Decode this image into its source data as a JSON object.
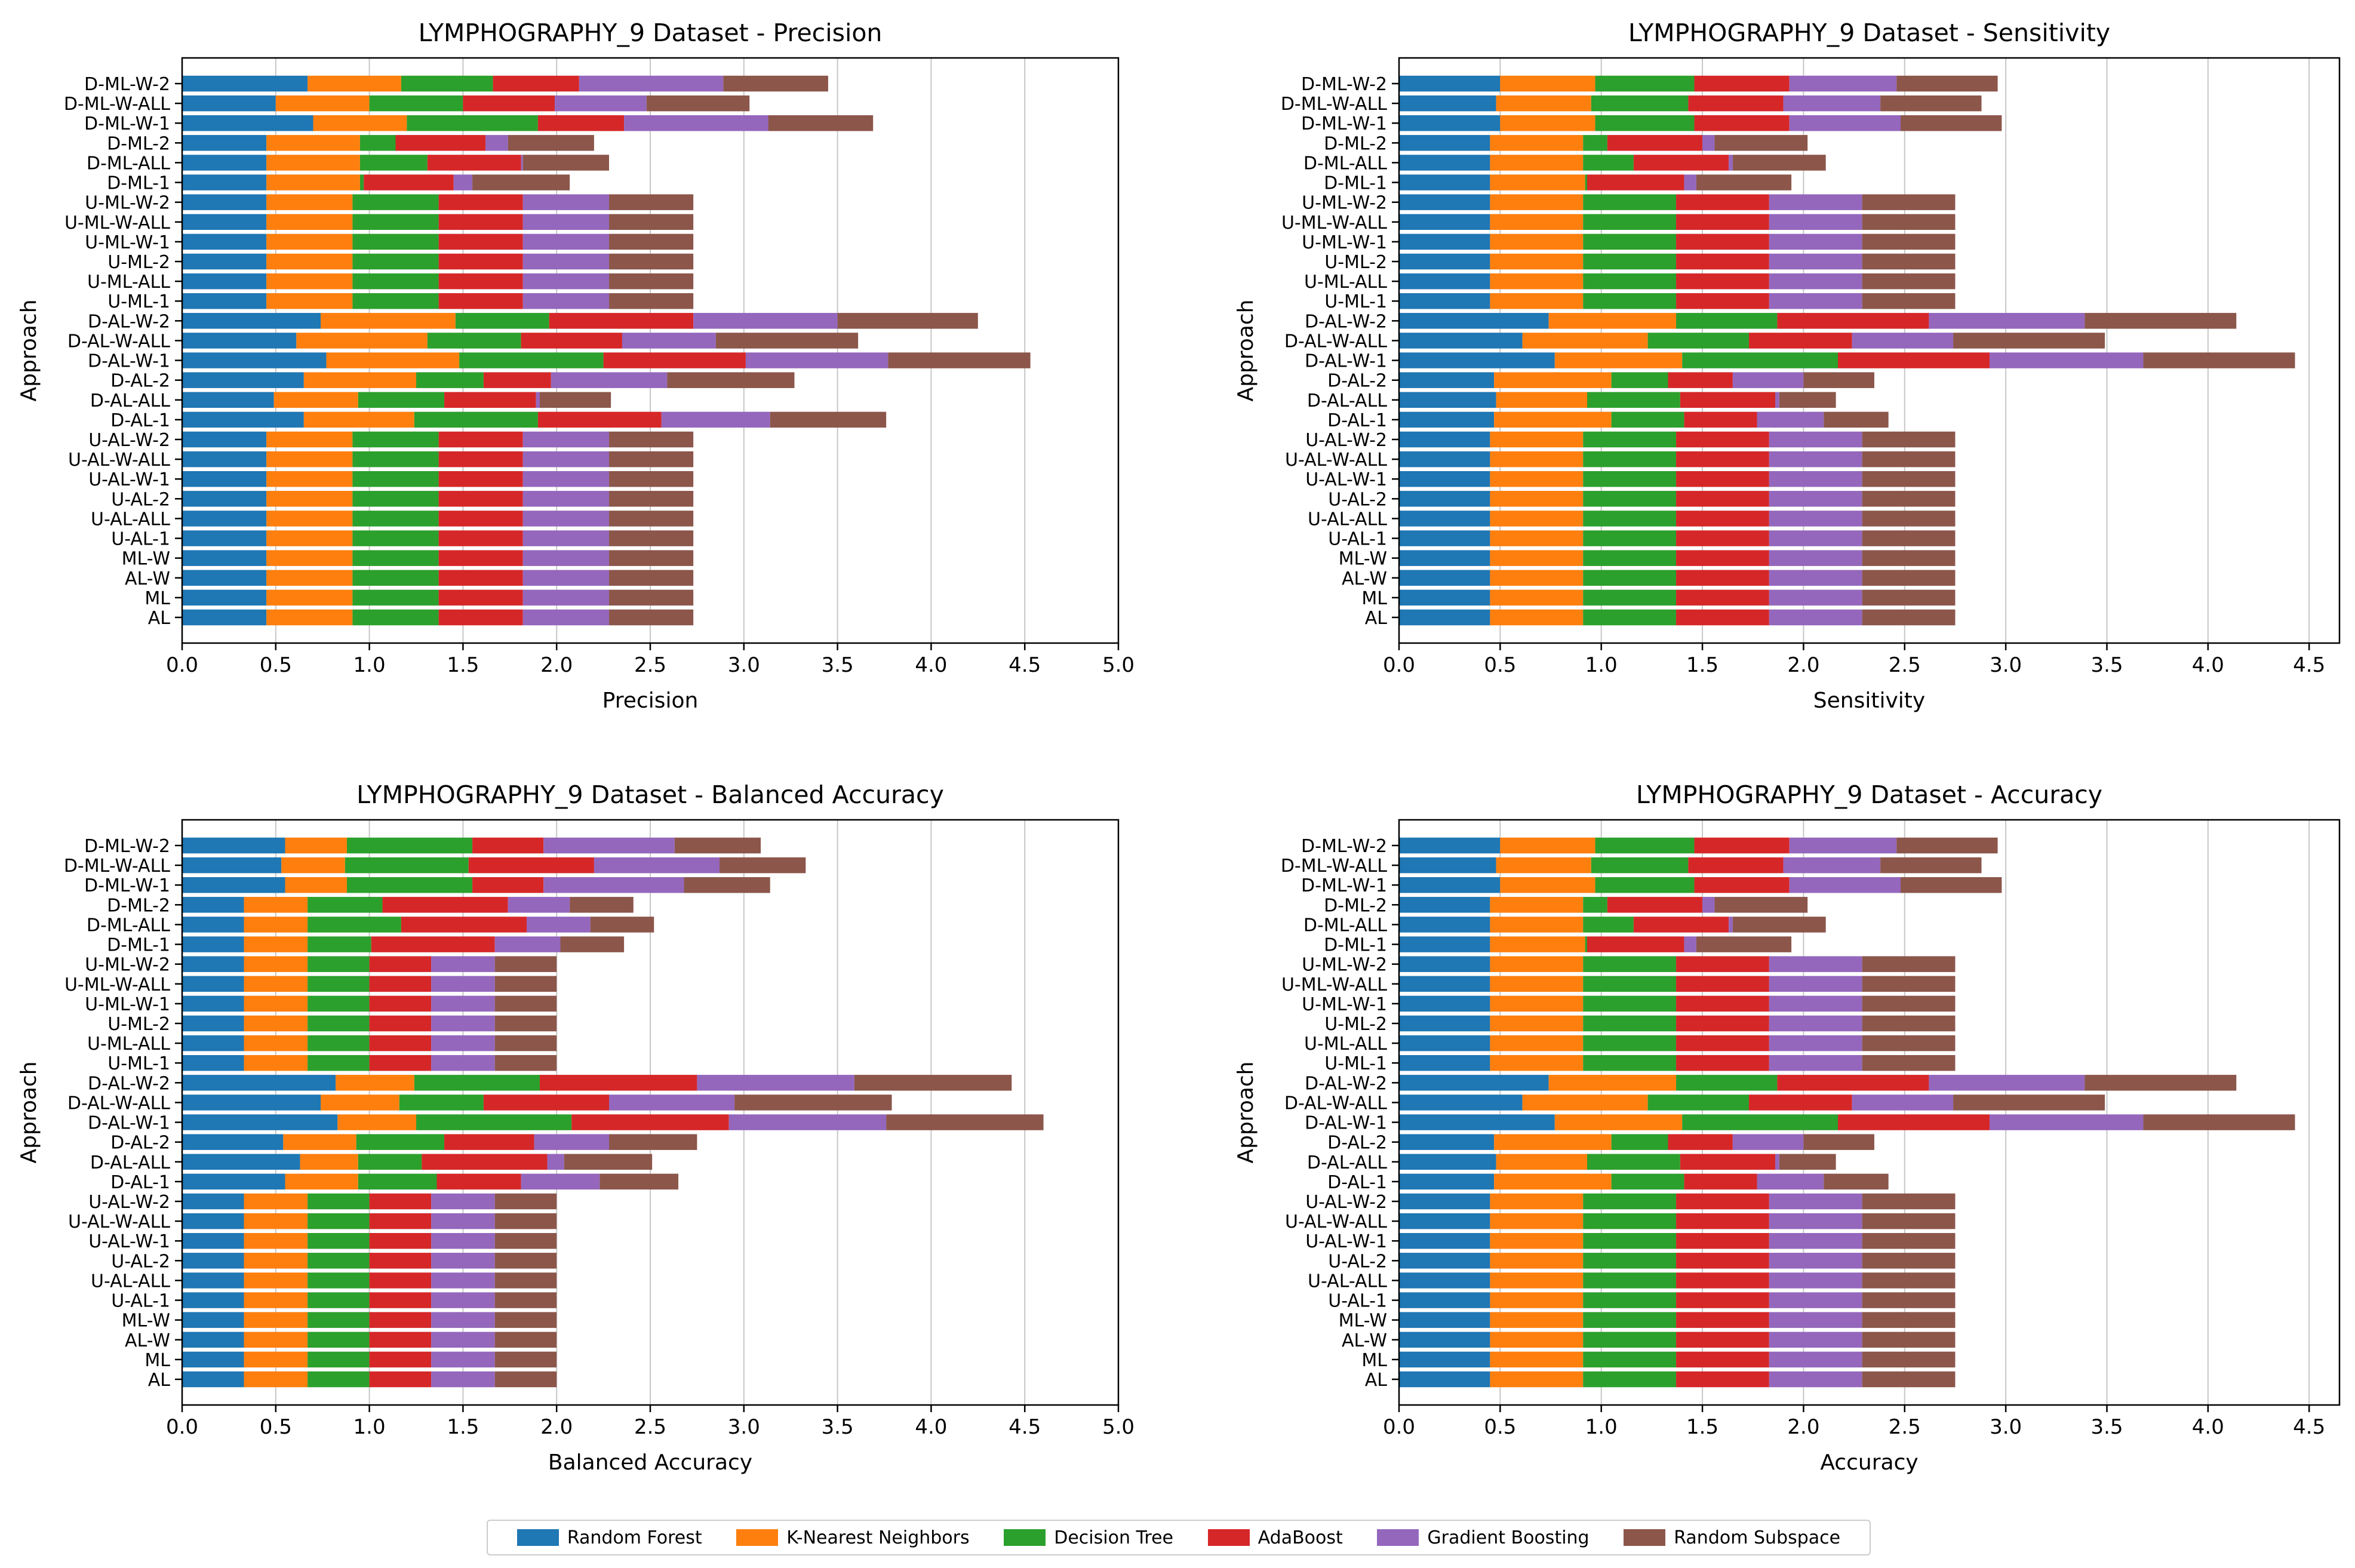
{
  "categories": [
    "D-ML-W-2",
    "D-ML-W-ALL",
    "D-ML-W-1",
    "D-ML-2",
    "D-ML-ALL",
    "D-ML-1",
    "U-ML-W-2",
    "U-ML-W-ALL",
    "U-ML-W-1",
    "U-ML-2",
    "U-ML-ALL",
    "U-ML-1",
    "D-AL-W-2",
    "D-AL-W-ALL",
    "D-AL-W-1",
    "D-AL-2",
    "D-AL-ALL",
    "D-AL-1",
    "U-AL-W-2",
    "U-AL-W-ALL",
    "U-AL-W-1",
    "U-AL-2",
    "U-AL-ALL",
    "U-AL-1",
    "ML-W",
    "AL-W",
    "ML",
    "AL"
  ],
  "colors": {
    "Random Forest": "#1f77b4",
    "K-Nearest Neighbors": "#ff7f0e",
    "Decision Tree": "#2ca02c",
    "AdaBoost": "#d62728",
    "Gradient Boosting": "#9467bd",
    "Random Subspace": "#8c564b"
  },
  "legend": [
    "Random Forest",
    "K-Nearest Neighbors",
    "Decision Tree",
    "AdaBoost",
    "Gradient Boosting",
    "Random Subspace"
  ],
  "chart_data": [
    {
      "type": "bar",
      "orientation": "horizontal-stacked",
      "title": "LYMPHOGRAPHY_9 Dataset - Precision",
      "xlabel": "Precision",
      "ylabel": "Approach",
      "xlim": [
        0,
        5
      ],
      "xticks": [
        "0.0",
        "0.5",
        "1.0",
        "1.5",
        "2.0",
        "2.5",
        "3.0",
        "3.5",
        "4.0",
        "4.5",
        "5.0"
      ],
      "series": [
        {
          "name": "Random Forest",
          "values": [
            0.67,
            0.5,
            0.7,
            0.45,
            0.45,
            0.45,
            0.45,
            0.45,
            0.45,
            0.45,
            0.45,
            0.45,
            0.74,
            0.61,
            0.77,
            0.65,
            0.49,
            0.65,
            0.45,
            0.45,
            0.45,
            0.45,
            0.45,
            0.45,
            0.45,
            0.45,
            0.45,
            0.45
          ]
        },
        {
          "name": "K-Nearest Neighbors",
          "values": [
            0.5,
            0.5,
            0.5,
            0.5,
            0.5,
            0.5,
            0.46,
            0.46,
            0.46,
            0.46,
            0.46,
            0.46,
            0.72,
            0.7,
            0.71,
            0.6,
            0.45,
            0.59,
            0.46,
            0.46,
            0.46,
            0.46,
            0.46,
            0.46,
            0.46,
            0.46,
            0.46,
            0.46
          ]
        },
        {
          "name": "Decision Tree",
          "values": [
            0.49,
            0.5,
            0.7,
            0.19,
            0.36,
            0.02,
            0.46,
            0.46,
            0.46,
            0.46,
            0.46,
            0.46,
            0.5,
            0.5,
            0.77,
            0.36,
            0.46,
            0.66,
            0.46,
            0.46,
            0.46,
            0.46,
            0.46,
            0.46,
            0.46,
            0.46,
            0.46,
            0.46
          ]
        },
        {
          "name": "AdaBoost",
          "values": [
            0.46,
            0.49,
            0.46,
            0.48,
            0.5,
            0.48,
            0.45,
            0.45,
            0.45,
            0.45,
            0.45,
            0.45,
            0.77,
            0.54,
            0.76,
            0.36,
            0.49,
            0.66,
            0.45,
            0.45,
            0.45,
            0.45,
            0.45,
            0.45,
            0.45,
            0.45,
            0.45,
            0.45
          ]
        },
        {
          "name": "Gradient Boosting",
          "values": [
            0.77,
            0.49,
            0.77,
            0.12,
            0.01,
            0.1,
            0.46,
            0.46,
            0.46,
            0.46,
            0.46,
            0.46,
            0.77,
            0.5,
            0.76,
            0.62,
            0.02,
            0.58,
            0.46,
            0.46,
            0.46,
            0.46,
            0.46,
            0.46,
            0.46,
            0.46,
            0.46,
            0.46
          ]
        },
        {
          "name": "Random Subspace",
          "values": [
            0.56,
            0.55,
            0.56,
            0.46,
            0.46,
            0.52,
            0.45,
            0.45,
            0.45,
            0.45,
            0.45,
            0.45,
            0.75,
            0.76,
            0.76,
            0.68,
            0.38,
            0.62,
            0.45,
            0.45,
            0.45,
            0.45,
            0.45,
            0.45,
            0.45,
            0.45,
            0.45,
            0.45
          ]
        }
      ]
    },
    {
      "type": "bar",
      "orientation": "horizontal-stacked",
      "title": "LYMPHOGRAPHY_9 Dataset - Sensitivity",
      "xlabel": "Sensitivity",
      "ylabel": "Approach",
      "xlim": [
        0,
        4.65
      ],
      "xticks": [
        "0.0",
        "0.5",
        "1.0",
        "1.5",
        "2.0",
        "2.5",
        "3.0",
        "3.5",
        "4.0",
        "4.5"
      ],
      "series": [
        {
          "name": "Random Forest",
          "values": [
            0.5,
            0.48,
            0.5,
            0.45,
            0.45,
            0.45,
            0.45,
            0.45,
            0.45,
            0.45,
            0.45,
            0.45,
            0.74,
            0.61,
            0.77,
            0.47,
            0.48,
            0.47,
            0.45,
            0.45,
            0.45,
            0.45,
            0.45,
            0.45,
            0.45,
            0.45,
            0.45,
            0.45
          ]
        },
        {
          "name": "K-Nearest Neighbors",
          "values": [
            0.47,
            0.47,
            0.47,
            0.46,
            0.46,
            0.47,
            0.46,
            0.46,
            0.46,
            0.46,
            0.46,
            0.46,
            0.63,
            0.62,
            0.63,
            0.58,
            0.45,
            0.58,
            0.46,
            0.46,
            0.46,
            0.46,
            0.46,
            0.46,
            0.46,
            0.46,
            0.46,
            0.46
          ]
        },
        {
          "name": "Decision Tree",
          "values": [
            0.49,
            0.48,
            0.49,
            0.12,
            0.25,
            0.01,
            0.46,
            0.46,
            0.46,
            0.46,
            0.46,
            0.46,
            0.5,
            0.5,
            0.77,
            0.28,
            0.46,
            0.36,
            0.46,
            0.46,
            0.46,
            0.46,
            0.46,
            0.46,
            0.46,
            0.46,
            0.46,
            0.46
          ]
        },
        {
          "name": "AdaBoost",
          "values": [
            0.47,
            0.47,
            0.47,
            0.47,
            0.47,
            0.48,
            0.46,
            0.46,
            0.46,
            0.46,
            0.46,
            0.46,
            0.75,
            0.51,
            0.75,
            0.32,
            0.47,
            0.36,
            0.46,
            0.46,
            0.46,
            0.46,
            0.46,
            0.46,
            0.46,
            0.46,
            0.46,
            0.46
          ]
        },
        {
          "name": "Gradient Boosting",
          "values": [
            0.53,
            0.48,
            0.55,
            0.06,
            0.02,
            0.06,
            0.46,
            0.46,
            0.46,
            0.46,
            0.46,
            0.46,
            0.77,
            0.5,
            0.76,
            0.35,
            0.02,
            0.33,
            0.46,
            0.46,
            0.46,
            0.46,
            0.46,
            0.46,
            0.46,
            0.46,
            0.46,
            0.46
          ]
        },
        {
          "name": "Random Subspace",
          "values": [
            0.5,
            0.5,
            0.5,
            0.46,
            0.46,
            0.47,
            0.46,
            0.46,
            0.46,
            0.46,
            0.46,
            0.46,
            0.75,
            0.75,
            0.75,
            0.35,
            0.28,
            0.32,
            0.46,
            0.46,
            0.46,
            0.46,
            0.46,
            0.46,
            0.46,
            0.46,
            0.46,
            0.46
          ]
        }
      ]
    },
    {
      "type": "bar",
      "orientation": "horizontal-stacked",
      "title": "LYMPHOGRAPHY_9 Dataset - Balanced Accuracy",
      "xlabel": "Balanced Accuracy",
      "ylabel": "Approach",
      "xlim": [
        0,
        5
      ],
      "xticks": [
        "0.0",
        "0.5",
        "1.0",
        "1.5",
        "2.0",
        "2.5",
        "3.0",
        "3.5",
        "4.0",
        "4.5",
        "5.0"
      ],
      "series": [
        {
          "name": "Random Forest",
          "values": [
            0.55,
            0.53,
            0.55,
            0.33,
            0.33,
            0.33,
            0.33,
            0.33,
            0.33,
            0.33,
            0.33,
            0.33,
            0.82,
            0.74,
            0.83,
            0.54,
            0.63,
            0.55,
            0.33,
            0.33,
            0.33,
            0.33,
            0.33,
            0.33,
            0.33,
            0.33,
            0.33,
            0.33
          ]
        },
        {
          "name": "K-Nearest Neighbors",
          "values": [
            0.33,
            0.34,
            0.33,
            0.34,
            0.34,
            0.34,
            0.34,
            0.34,
            0.34,
            0.34,
            0.34,
            0.34,
            0.42,
            0.42,
            0.42,
            0.39,
            0.31,
            0.39,
            0.34,
            0.34,
            0.34,
            0.34,
            0.34,
            0.34,
            0.34,
            0.34,
            0.34,
            0.34
          ]
        },
        {
          "name": "Decision Tree",
          "values": [
            0.67,
            0.66,
            0.67,
            0.4,
            0.5,
            0.34,
            0.33,
            0.33,
            0.33,
            0.33,
            0.33,
            0.33,
            0.67,
            0.45,
            0.83,
            0.47,
            0.34,
            0.42,
            0.33,
            0.33,
            0.33,
            0.33,
            0.33,
            0.33,
            0.33,
            0.33,
            0.33,
            0.33
          ]
        },
        {
          "name": "AdaBoost",
          "values": [
            0.38,
            0.67,
            0.38,
            0.67,
            0.67,
            0.66,
            0.33,
            0.33,
            0.33,
            0.33,
            0.33,
            0.33,
            0.84,
            0.67,
            0.84,
            0.48,
            0.67,
            0.45,
            0.33,
            0.33,
            0.33,
            0.33,
            0.33,
            0.33,
            0.33,
            0.33,
            0.33,
            0.33
          ]
        },
        {
          "name": "Gradient Boosting",
          "values": [
            0.7,
            0.67,
            0.75,
            0.33,
            0.34,
            0.35,
            0.34,
            0.34,
            0.34,
            0.34,
            0.34,
            0.34,
            0.84,
            0.67,
            0.84,
            0.4,
            0.09,
            0.42,
            0.34,
            0.34,
            0.34,
            0.34,
            0.34,
            0.34,
            0.34,
            0.34,
            0.34,
            0.34
          ]
        },
        {
          "name": "Random Subspace",
          "values": [
            0.46,
            0.46,
            0.46,
            0.34,
            0.34,
            0.34,
            0.33,
            0.33,
            0.33,
            0.33,
            0.33,
            0.33,
            0.84,
            0.84,
            0.84,
            0.47,
            0.47,
            0.42,
            0.33,
            0.33,
            0.33,
            0.33,
            0.33,
            0.33,
            0.33,
            0.33,
            0.33,
            0.33
          ]
        }
      ]
    },
    {
      "type": "bar",
      "orientation": "horizontal-stacked",
      "title": "LYMPHOGRAPHY_9 Dataset - Accuracy",
      "xlabel": "Accuracy",
      "ylabel": "Approach",
      "xlim": [
        0,
        4.65
      ],
      "xticks": [
        "0.0",
        "0.5",
        "1.0",
        "1.5",
        "2.0",
        "2.5",
        "3.0",
        "3.5",
        "4.0",
        "4.5"
      ],
      "series": [
        {
          "name": "Random Forest",
          "values": [
            0.5,
            0.48,
            0.5,
            0.45,
            0.45,
            0.45,
            0.45,
            0.45,
            0.45,
            0.45,
            0.45,
            0.45,
            0.74,
            0.61,
            0.77,
            0.47,
            0.48,
            0.47,
            0.45,
            0.45,
            0.45,
            0.45,
            0.45,
            0.45,
            0.45,
            0.45,
            0.45,
            0.45
          ]
        },
        {
          "name": "K-Nearest Neighbors",
          "values": [
            0.47,
            0.47,
            0.47,
            0.46,
            0.46,
            0.47,
            0.46,
            0.46,
            0.46,
            0.46,
            0.46,
            0.46,
            0.63,
            0.62,
            0.63,
            0.58,
            0.45,
            0.58,
            0.46,
            0.46,
            0.46,
            0.46,
            0.46,
            0.46,
            0.46,
            0.46,
            0.46,
            0.46
          ]
        },
        {
          "name": "Decision Tree",
          "values": [
            0.49,
            0.48,
            0.49,
            0.12,
            0.25,
            0.01,
            0.46,
            0.46,
            0.46,
            0.46,
            0.46,
            0.46,
            0.5,
            0.5,
            0.77,
            0.28,
            0.46,
            0.36,
            0.46,
            0.46,
            0.46,
            0.46,
            0.46,
            0.46,
            0.46,
            0.46,
            0.46,
            0.46
          ]
        },
        {
          "name": "AdaBoost",
          "values": [
            0.47,
            0.47,
            0.47,
            0.47,
            0.47,
            0.48,
            0.46,
            0.46,
            0.46,
            0.46,
            0.46,
            0.46,
            0.75,
            0.51,
            0.75,
            0.32,
            0.47,
            0.36,
            0.46,
            0.46,
            0.46,
            0.46,
            0.46,
            0.46,
            0.46,
            0.46,
            0.46,
            0.46
          ]
        },
        {
          "name": "Gradient Boosting",
          "values": [
            0.53,
            0.48,
            0.55,
            0.06,
            0.02,
            0.06,
            0.46,
            0.46,
            0.46,
            0.46,
            0.46,
            0.46,
            0.77,
            0.5,
            0.76,
            0.35,
            0.02,
            0.33,
            0.46,
            0.46,
            0.46,
            0.46,
            0.46,
            0.46,
            0.46,
            0.46,
            0.46,
            0.46
          ]
        },
        {
          "name": "Random Subspace",
          "values": [
            0.5,
            0.5,
            0.5,
            0.46,
            0.46,
            0.47,
            0.46,
            0.46,
            0.46,
            0.46,
            0.46,
            0.46,
            0.75,
            0.75,
            0.75,
            0.35,
            0.28,
            0.32,
            0.46,
            0.46,
            0.46,
            0.46,
            0.46,
            0.46,
            0.46,
            0.46,
            0.46,
            0.46
          ]
        }
      ]
    }
  ]
}
